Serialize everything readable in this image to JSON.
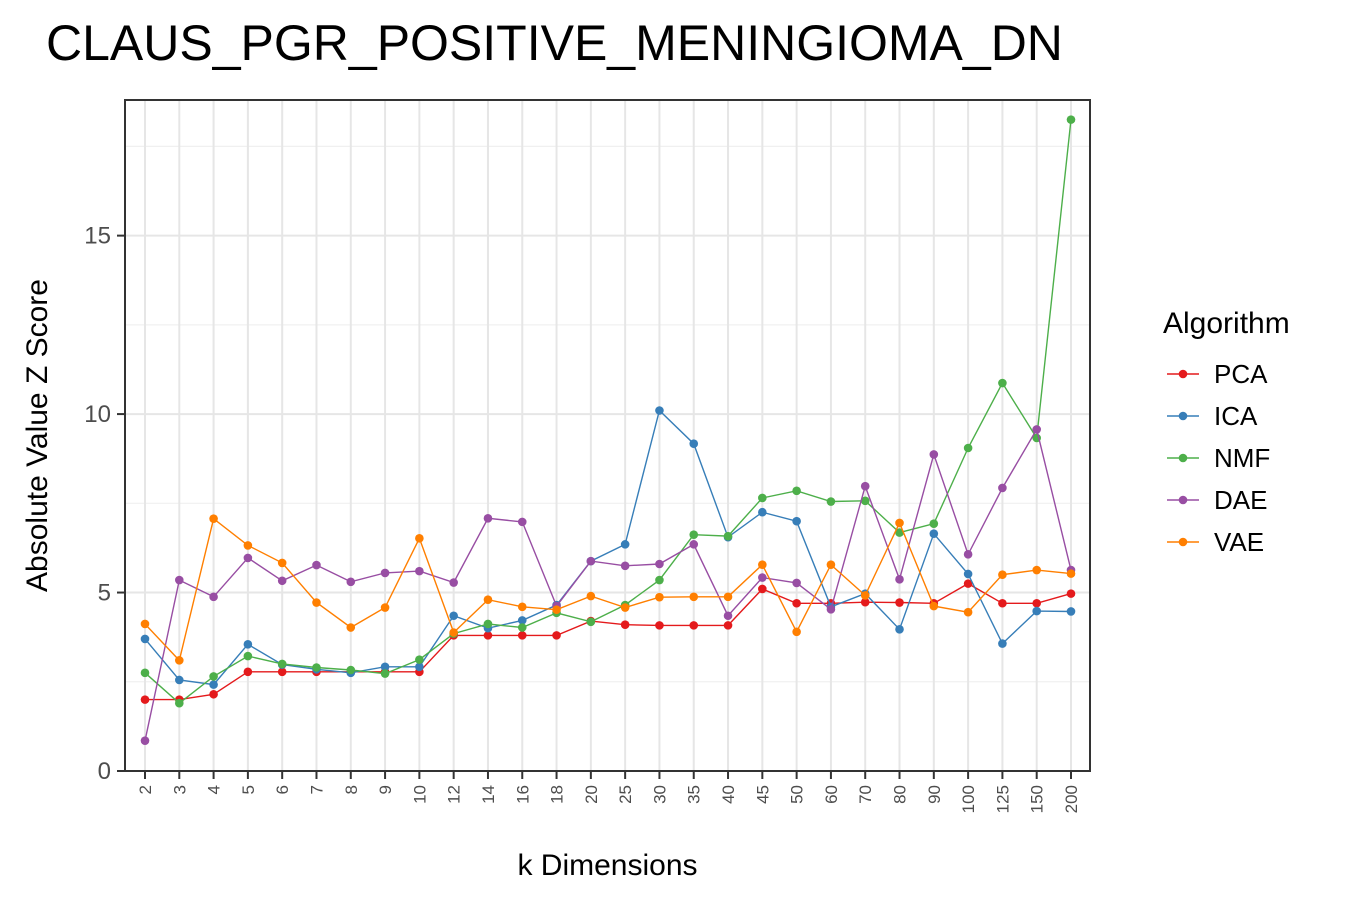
{
  "chart_data": {
    "type": "line",
    "title": "CLAUS_PGR_POSITIVE_MENINGIOMA_DN",
    "xlabel": "k Dimensions",
    "ylabel": "Absolute Value Z Score",
    "categories": [
      "2",
      "3",
      "4",
      "5",
      "6",
      "7",
      "8",
      "9",
      "10",
      "12",
      "14",
      "16",
      "18",
      "20",
      "25",
      "30",
      "35",
      "40",
      "45",
      "50",
      "60",
      "70",
      "80",
      "90",
      "100",
      "125",
      "150",
      "200"
    ],
    "yticks": [
      "0",
      "5",
      "10",
      "15"
    ],
    "ylim": [
      0,
      18.8
    ],
    "grid": true,
    "legend": {
      "title": "Algorithm",
      "position": "right"
    },
    "series": [
      {
        "name": "PCA",
        "color": "#e41a1c",
        "values": [
          2.0,
          2.0,
          2.15,
          2.78,
          2.78,
          2.78,
          2.78,
          2.78,
          2.78,
          3.8,
          3.8,
          3.8,
          3.8,
          4.2,
          4.1,
          4.08,
          4.08,
          4.08,
          5.1,
          4.7,
          4.7,
          4.73,
          4.72,
          4.7,
          5.25,
          4.7,
          4.7,
          4.97
        ]
      },
      {
        "name": "ICA",
        "color": "#377eb8",
        "values": [
          3.7,
          2.55,
          2.42,
          3.55,
          2.98,
          2.85,
          2.75,
          2.92,
          2.92,
          4.35,
          4.0,
          4.22,
          4.65,
          5.88,
          6.35,
          10.1,
          9.17,
          6.55,
          7.25,
          7.0,
          4.6,
          4.97,
          3.97,
          6.65,
          5.52,
          3.57,
          4.48,
          4.47
        ]
      },
      {
        "name": "NMF",
        "color": "#4daf4a",
        "values": [
          2.75,
          1.9,
          2.65,
          3.22,
          3.0,
          2.9,
          2.83,
          2.73,
          3.12,
          3.85,
          4.12,
          4.02,
          4.43,
          4.18,
          4.65,
          5.35,
          6.62,
          6.58,
          7.65,
          7.85,
          7.55,
          7.57,
          6.68,
          6.93,
          9.05,
          10.87,
          9.33,
          18.25
        ]
      },
      {
        "name": "DAE",
        "color": "#984ea3",
        "values": [
          0.85,
          5.35,
          4.88,
          5.97,
          5.33,
          5.77,
          5.3,
          5.55,
          5.6,
          5.28,
          7.08,
          6.98,
          4.62,
          5.88,
          5.75,
          5.8,
          6.35,
          4.35,
          5.42,
          5.27,
          4.53,
          7.98,
          5.37,
          8.87,
          6.07,
          7.93,
          9.57,
          5.63
        ]
      },
      {
        "name": "VAE",
        "color": "#ff7f00",
        "values": [
          4.12,
          3.1,
          7.07,
          6.32,
          5.83,
          4.72,
          4.02,
          4.58,
          6.52,
          3.88,
          4.8,
          4.6,
          4.52,
          4.9,
          4.58,
          4.87,
          4.88,
          4.88,
          5.78,
          3.9,
          5.78,
          4.92,
          6.95,
          4.62,
          4.45,
          5.5,
          5.63,
          5.53
        ]
      }
    ]
  }
}
